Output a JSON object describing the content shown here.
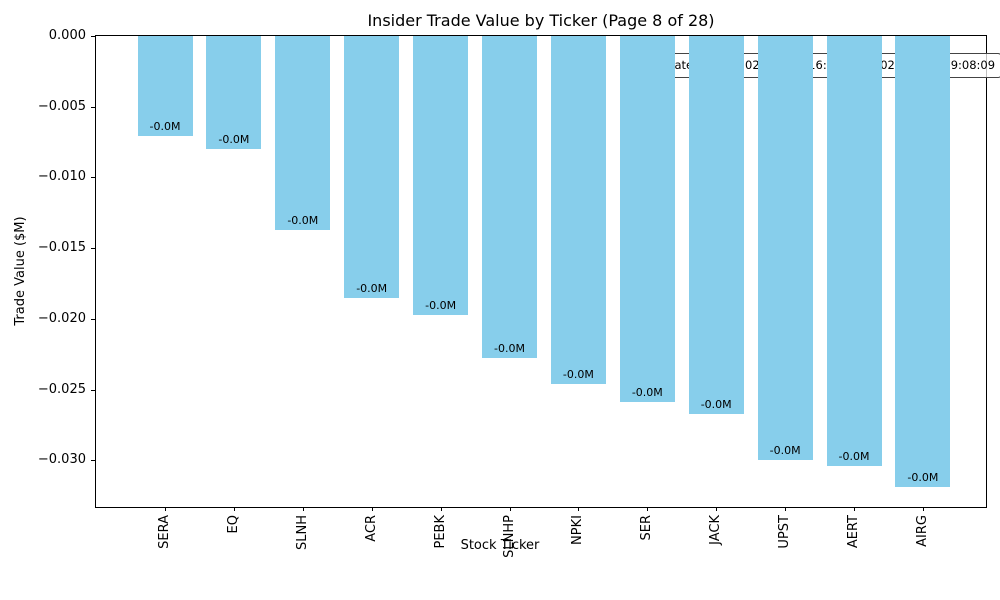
{
  "figure": {
    "background": "#ffffff",
    "page": {
      "current": 8,
      "total": 28
    }
  },
  "chart_data": {
    "type": "bar",
    "title": "Insider Trade Value by Ticker (Page 8 of 28)",
    "xlabel": "Stock Ticker",
    "ylabel": "Trade Value ($M)",
    "categories": [
      "SERA",
      "EQ",
      "SLNH",
      "ACR",
      "PEBK",
      "SLNHP",
      "NPKI",
      "SER",
      "JACK",
      "UPST",
      "AERT",
      "AIRG"
    ],
    "values": [
      -0.0071,
      -0.008,
      -0.0137,
      -0.0185,
      -0.0197,
      -0.0228,
      -0.0246,
      -0.0259,
      -0.0267,
      -0.03,
      -0.0304,
      -0.0319
    ],
    "bar_value_labels": [
      "-0.0M",
      "-0.0M",
      "-0.0M",
      "-0.0M",
      "-0.0M",
      "-0.0M",
      "-0.0M",
      "-0.0M",
      "-0.0M",
      "-0.0M",
      "-0.0M",
      "-0.0M"
    ],
    "bar_color": "#87CEEB",
    "ylim": [
      -0.0333,
      0
    ],
    "yticks": {
      "values": [
        0,
        -0.005,
        -0.01,
        -0.015,
        -0.02,
        -0.025,
        -0.03
      ],
      "labels": [
        "0.000",
        "−0.005",
        "−0.010",
        "−0.015",
        "−0.020",
        "−0.025",
        "−0.030"
      ]
    },
    "grid": false,
    "legend": null,
    "annotation": "Trade date range: 2025-11-25 16:40:21 – 2025-11-28 09:08:09"
  }
}
